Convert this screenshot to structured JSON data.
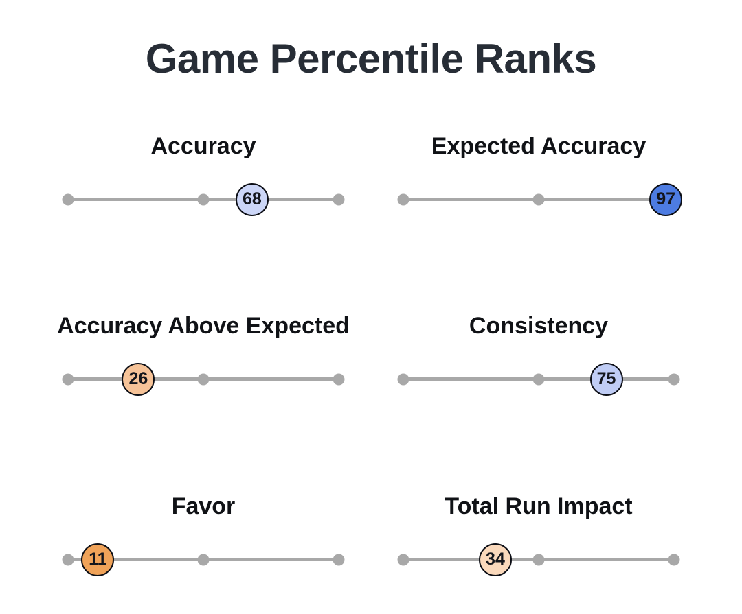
{
  "title": "Game Percentile Ranks",
  "styles": {
    "background": "#ffffff",
    "title_color": "#272d36",
    "label_color": "#101216",
    "track_color": "#a8a8a8",
    "dot_color": "#a8a8a8",
    "knob_border_color": "#0c0e15"
  },
  "sliders": [
    {
      "label": "Accuracy",
      "value": 68,
      "fill": "#ccd6f7"
    },
    {
      "label": "Expected Accuracy",
      "value": 97,
      "fill": "#4d7ce2"
    },
    {
      "label": "Accuracy Above Expected",
      "value": 26,
      "fill": "#f6c398"
    },
    {
      "label": "Consistency",
      "value": 75,
      "fill": "#c0cdf5"
    },
    {
      "label": "Favor",
      "value": 11,
      "fill": "#f0a359"
    },
    {
      "label": "Total Run Impact",
      "value": 34,
      "fill": "#fad9bc"
    }
  ],
  "chart_data": {
    "type": "scatter",
    "title": "Game Percentile Ranks",
    "categories": [
      "Accuracy",
      "Expected Accuracy",
      "Accuracy Above Expected",
      "Consistency",
      "Favor",
      "Total Run Impact"
    ],
    "values": [
      68,
      97,
      26,
      75,
      11,
      34
    ],
    "xlim": [
      0,
      100
    ],
    "legend": "none",
    "layout": "2-column by 3-row grid of percentile slider gauges; each gray track has reference dots at 0, 50 and 100; circular marker position encodes percentile; marker color diverges from orange (low) through pale peach/periwinkle (mid) to royal blue (high)"
  }
}
